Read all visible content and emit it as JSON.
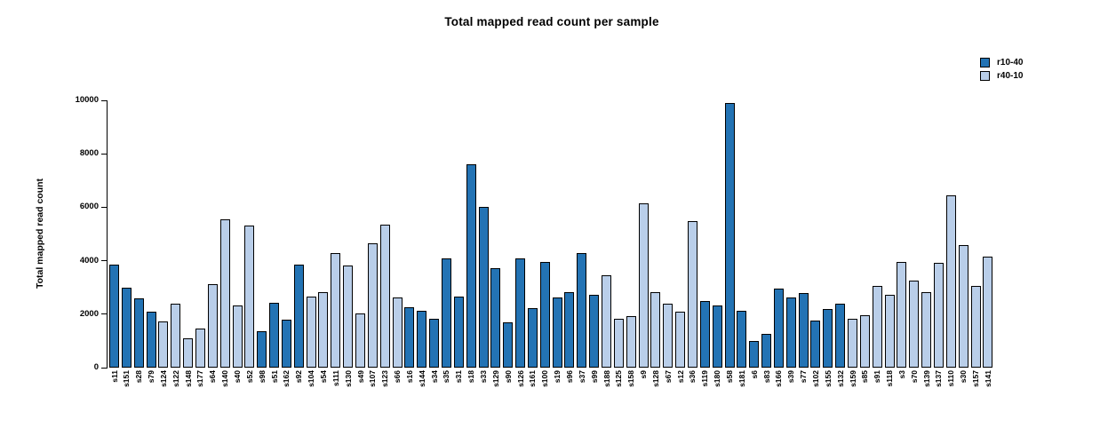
{
  "chart_data": {
    "type": "bar",
    "title": "Total mapped read count per sample",
    "xlabel": "",
    "ylabel": "Total mapped read count",
    "ylim": [
      0,
      10000
    ],
    "yticks": [
      0,
      2000,
      4000,
      6000,
      8000,
      10000
    ],
    "grid": false,
    "legend_position": "top-right",
    "legend": [
      {
        "name": "r10-40",
        "color": "#2373b4"
      },
      {
        "name": "r40-10",
        "color": "#b9cee9"
      }
    ],
    "bar_border_color": "#000000",
    "bars": [
      {
        "label": "s11",
        "value": 3870,
        "group": "r10-40"
      },
      {
        "label": "s151",
        "value": 2980,
        "group": "r10-40"
      },
      {
        "label": "s28",
        "value": 2580,
        "group": "r10-40"
      },
      {
        "label": "s79",
        "value": 2100,
        "group": "r10-40"
      },
      {
        "label": "s124",
        "value": 1730,
        "group": "r40-10"
      },
      {
        "label": "s122",
        "value": 2400,
        "group": "r40-10"
      },
      {
        "label": "s148",
        "value": 1110,
        "group": "r40-10"
      },
      {
        "label": "s177",
        "value": 1450,
        "group": "r40-10"
      },
      {
        "label": "s64",
        "value": 3110,
        "group": "r40-10"
      },
      {
        "label": "s140",
        "value": 5540,
        "group": "r40-10"
      },
      {
        "label": "s40",
        "value": 2340,
        "group": "r40-10"
      },
      {
        "label": "s52",
        "value": 5330,
        "group": "r40-10"
      },
      {
        "label": "s98",
        "value": 1360,
        "group": "r10-40"
      },
      {
        "label": "s51",
        "value": 2440,
        "group": "r10-40"
      },
      {
        "label": "s162",
        "value": 1780,
        "group": "r10-40"
      },
      {
        "label": "s92",
        "value": 3840,
        "group": "r10-40"
      },
      {
        "label": "s104",
        "value": 2650,
        "group": "r40-10"
      },
      {
        "label": "s54",
        "value": 2810,
        "group": "r40-10"
      },
      {
        "label": "s111",
        "value": 4290,
        "group": "r40-10"
      },
      {
        "label": "s130",
        "value": 3810,
        "group": "r40-10"
      },
      {
        "label": "s49",
        "value": 2010,
        "group": "r40-10"
      },
      {
        "label": "s107",
        "value": 4640,
        "group": "r40-10"
      },
      {
        "label": "s123",
        "value": 5360,
        "group": "r40-10"
      },
      {
        "label": "s66",
        "value": 2640,
        "group": "r40-10"
      },
      {
        "label": "s16",
        "value": 2260,
        "group": "r10-40"
      },
      {
        "label": "s144",
        "value": 2110,
        "group": "r10-40"
      },
      {
        "label": "s34",
        "value": 1840,
        "group": "r10-40"
      },
      {
        "label": "s35",
        "value": 4070,
        "group": "r10-40"
      },
      {
        "label": "s31",
        "value": 2670,
        "group": "r10-40"
      },
      {
        "label": "s18",
        "value": 7620,
        "group": "r10-40"
      },
      {
        "label": "s33",
        "value": 6010,
        "group": "r10-40"
      },
      {
        "label": "s129",
        "value": 3720,
        "group": "r10-40"
      },
      {
        "label": "s90",
        "value": 1690,
        "group": "r10-40"
      },
      {
        "label": "s126",
        "value": 4100,
        "group": "r10-40"
      },
      {
        "label": "s161",
        "value": 2230,
        "group": "r10-40"
      },
      {
        "label": "s100",
        "value": 3950,
        "group": "r10-40"
      },
      {
        "label": "s19",
        "value": 2620,
        "group": "r10-40"
      },
      {
        "label": "s96",
        "value": 2840,
        "group": "r10-40"
      },
      {
        "label": "s37",
        "value": 4270,
        "group": "r10-40"
      },
      {
        "label": "s99",
        "value": 2740,
        "group": "r10-40"
      },
      {
        "label": "s188",
        "value": 3450,
        "group": "r40-10"
      },
      {
        "label": "s125",
        "value": 1840,
        "group": "r40-10"
      },
      {
        "label": "s158",
        "value": 1920,
        "group": "r40-10"
      },
      {
        "label": "s9",
        "value": 6130,
        "group": "r40-10"
      },
      {
        "label": "s128",
        "value": 2840,
        "group": "r40-10"
      },
      {
        "label": "s67",
        "value": 2380,
        "group": "r40-10"
      },
      {
        "label": "s12",
        "value": 2100,
        "group": "r40-10"
      },
      {
        "label": "s36",
        "value": 5470,
        "group": "r40-10"
      },
      {
        "label": "s119",
        "value": 2480,
        "group": "r10-40"
      },
      {
        "label": "s180",
        "value": 2340,
        "group": "r10-40"
      },
      {
        "label": "s58",
        "value": 9900,
        "group": "r10-40"
      },
      {
        "label": "s181",
        "value": 2140,
        "group": "r10-40"
      },
      {
        "label": "s6",
        "value": 990,
        "group": "r10-40"
      },
      {
        "label": "s83",
        "value": 1270,
        "group": "r10-40"
      },
      {
        "label": "s166",
        "value": 2950,
        "group": "r10-40"
      },
      {
        "label": "s39",
        "value": 2610,
        "group": "r10-40"
      },
      {
        "label": "s77",
        "value": 2780,
        "group": "r10-40"
      },
      {
        "label": "s102",
        "value": 1760,
        "group": "r10-40"
      },
      {
        "label": "s155",
        "value": 2180,
        "group": "r10-40"
      },
      {
        "label": "s132",
        "value": 2400,
        "group": "r10-40"
      },
      {
        "label": "s159",
        "value": 1820,
        "group": "r40-10"
      },
      {
        "label": "s85",
        "value": 1960,
        "group": "r40-10"
      },
      {
        "label": "s91",
        "value": 3040,
        "group": "r40-10"
      },
      {
        "label": "s118",
        "value": 2720,
        "group": "r40-10"
      },
      {
        "label": "s3",
        "value": 3940,
        "group": "r40-10"
      },
      {
        "label": "s70",
        "value": 3250,
        "group": "r40-10"
      },
      {
        "label": "s139",
        "value": 2820,
        "group": "r40-10"
      },
      {
        "label": "s137",
        "value": 3910,
        "group": "r40-10"
      },
      {
        "label": "s110",
        "value": 6460,
        "group": "r40-10"
      },
      {
        "label": "s30",
        "value": 4570,
        "group": "r40-10"
      },
      {
        "label": "s157",
        "value": 3040,
        "group": "r40-10"
      },
      {
        "label": "s141",
        "value": 4140,
        "group": "r40-10"
      }
    ]
  }
}
